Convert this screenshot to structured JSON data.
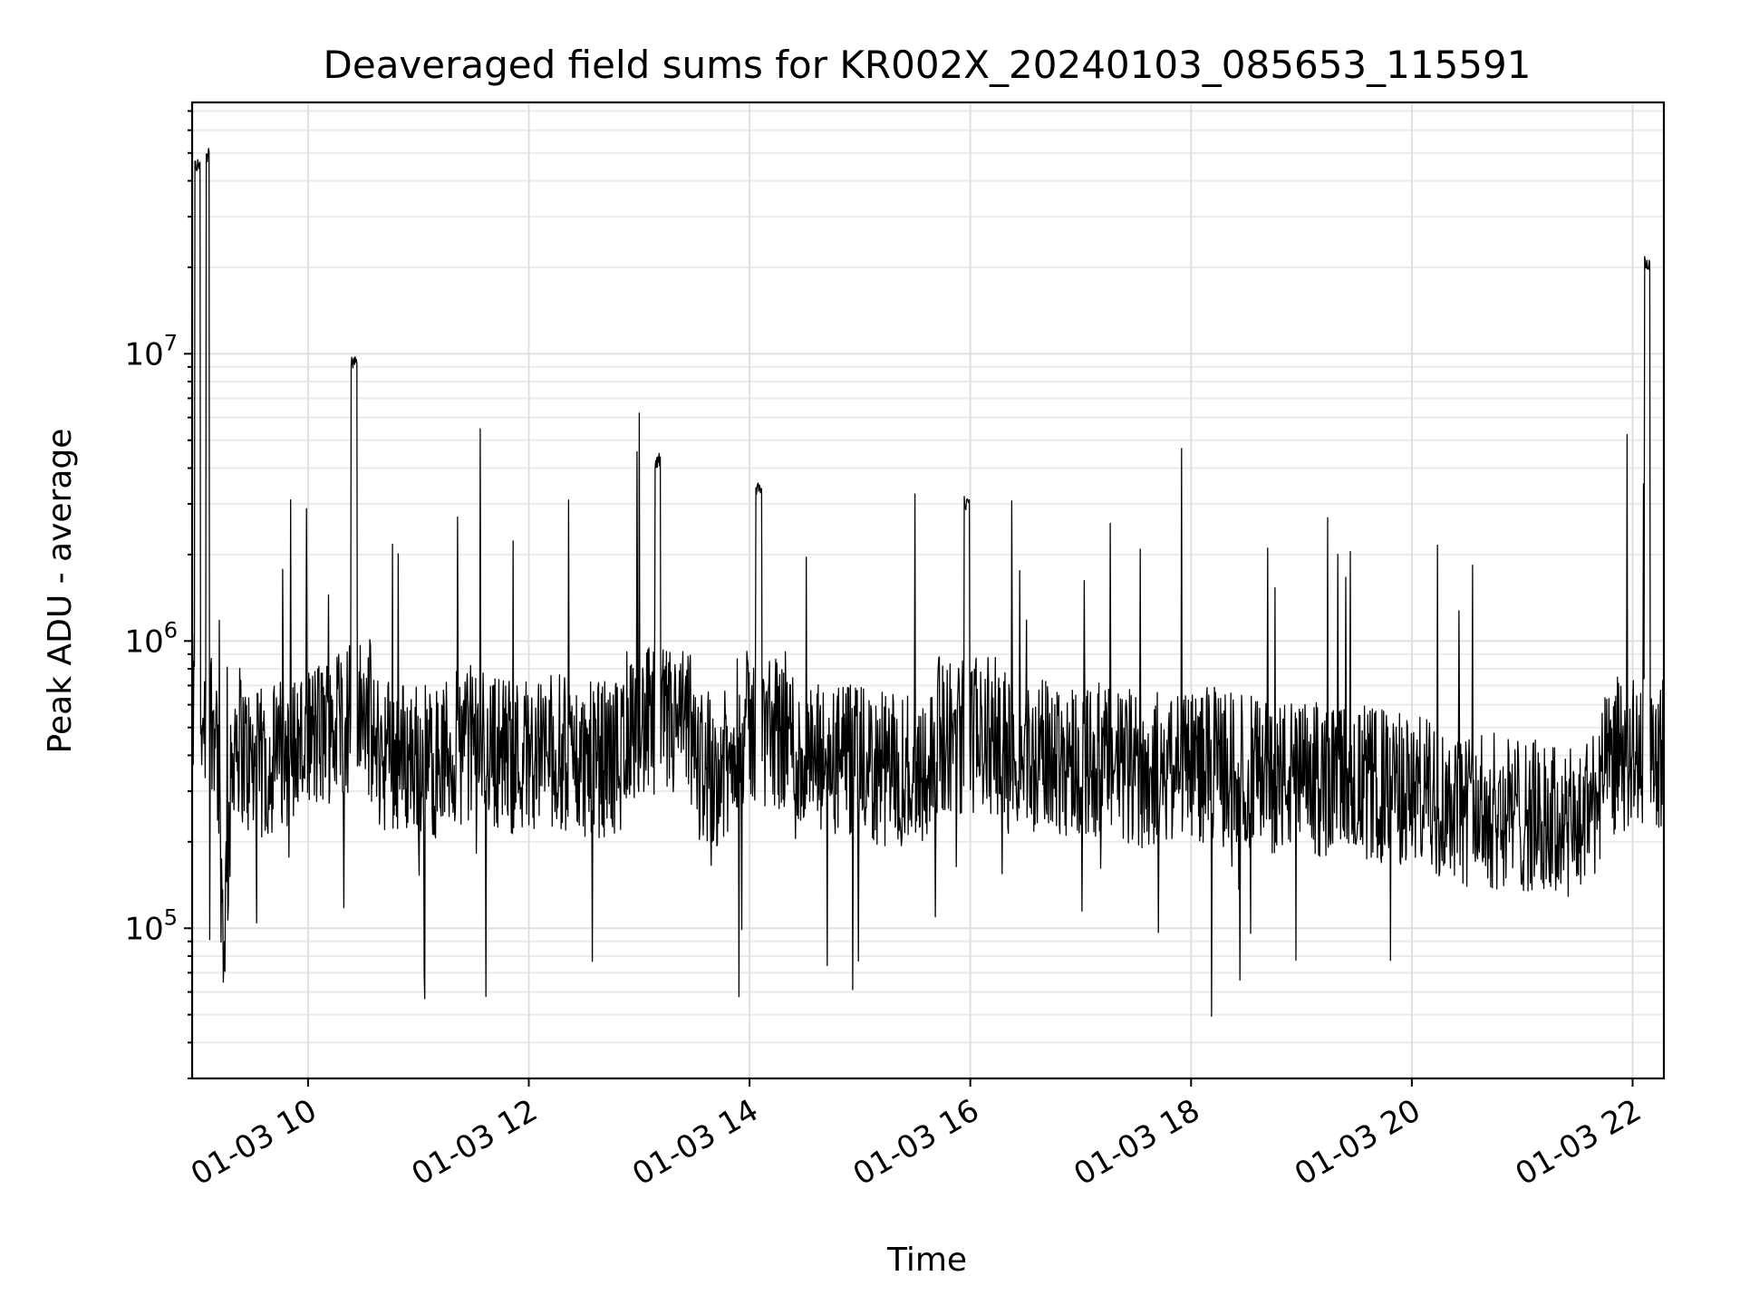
{
  "chart_data": {
    "type": "line",
    "title": "Deaveraged field sums for KR002X_20240103_085653_115591",
    "xlabel": "Time",
    "ylabel": "Peak ADU - average",
    "x_type": "datetime",
    "xlim": [
      "2024-01-03 08:57",
      "2024-01-03 22:17"
    ],
    "ylim": [
      30000,
      75000000
    ],
    "yscale": "log",
    "grid": true,
    "x_ticks": [
      {
        "value": "2024-01-03 10:00",
        "label": "01-03 10"
      },
      {
        "value": "2024-01-03 12:00",
        "label": "01-03 12"
      },
      {
        "value": "2024-01-03 14:00",
        "label": "01-03 14"
      },
      {
        "value": "2024-01-03 16:00",
        "label": "01-03 16"
      },
      {
        "value": "2024-01-03 18:00",
        "label": "01-03 18"
      },
      {
        "value": "2024-01-03 20:00",
        "label": "01-03 20"
      },
      {
        "value": "2024-01-03 22:00",
        "label": "01-03 22"
      }
    ],
    "y_ticks": [
      {
        "value": 100000,
        "base": "10",
        "exp": "5"
      },
      {
        "value": 1000000,
        "base": "10",
        "exp": "6"
      },
      {
        "value": 10000000,
        "base": "10",
        "exp": "7"
      }
    ],
    "line_color": "#000000",
    "series": [
      {
        "x": [
          "2024-01-03 08:57",
          "2024-01-03 09:00",
          "2024-01-03 09:03",
          "2024-01-03 09:06",
          "2024-01-03 09:07",
          "2024-01-03 09:10",
          "2024-01-03 09:14",
          "2024-01-03 09:20",
          "2024-01-03 09:30",
          "2024-01-03 09:45",
          "2024-01-03 10:00",
          "2024-01-03 10:15",
          "2024-01-03 10:25",
          "2024-01-03 10:35",
          "2024-01-03 10:50",
          "2024-01-03 11:10",
          "2024-01-03 11:30",
          "2024-01-03 11:50",
          "2024-01-03 12:10",
          "2024-01-03 12:30",
          "2024-01-03 12:50",
          "2024-01-03 13:10",
          "2024-01-03 13:30",
          "2024-01-03 13:50",
          "2024-01-03 14:05",
          "2024-01-03 14:25",
          "2024-01-03 14:50",
          "2024-01-03 15:15",
          "2024-01-03 15:40",
          "2024-01-03 15:58",
          "2024-01-03 16:20",
          "2024-01-03 16:45",
          "2024-01-03 17:10",
          "2024-01-03 17:35",
          "2024-01-03 18:00",
          "2024-01-03 18:30",
          "2024-01-03 19:00",
          "2024-01-03 19:30",
          "2024-01-03 20:00",
          "2024-01-03 20:30",
          "2024-01-03 21:00",
          "2024-01-03 21:30",
          "2024-01-03 21:55",
          "2024-01-03 22:08",
          "2024-01-03 22:17"
        ],
        "y": [
          800000,
          48000000,
          1500000,
          52000000,
          700000,
          600000,
          90000,
          500000,
          350000,
          400000,
          450000,
          500000,
          10000000,
          420000,
          400000,
          380000,
          450000,
          400000,
          420000,
          380000,
          400000,
          4500000,
          380000,
          350000,
          3600000,
          370000,
          380000,
          350000,
          380000,
          3200000,
          380000,
          400000,
          380000,
          350000,
          380000,
          350000,
          330000,
          320000,
          300000,
          260000,
          250000,
          220000,
          450000,
          22000000,
          550000
        ]
      }
    ]
  }
}
